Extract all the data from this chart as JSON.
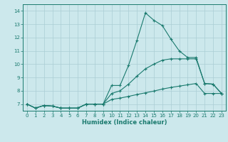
{
  "xlabel": "Humidex (Indice chaleur)",
  "background_color": "#cce8ec",
  "grid_color": "#aacdd4",
  "line_color": "#1a7a6e",
  "x_values": [
    0,
    1,
    2,
    3,
    4,
    5,
    6,
    7,
    8,
    9,
    10,
    11,
    12,
    13,
    14,
    15,
    16,
    17,
    18,
    19,
    20,
    21,
    22,
    23
  ],
  "line_main_y": [
    7.0,
    6.7,
    6.9,
    6.85,
    6.7,
    6.7,
    6.7,
    7.0,
    7.0,
    7.0,
    8.4,
    8.4,
    9.9,
    11.8,
    13.85,
    13.3,
    12.9,
    11.9,
    11.0,
    10.5,
    10.5,
    8.55,
    8.5,
    7.8
  ],
  "line_mid_y": [
    7.0,
    6.7,
    6.9,
    6.85,
    6.7,
    6.7,
    6.7,
    7.0,
    7.0,
    7.0,
    7.8,
    8.0,
    8.5,
    9.1,
    9.65,
    10.0,
    10.3,
    10.4,
    10.4,
    10.4,
    10.4,
    8.55,
    8.5,
    7.8
  ],
  "line_low_y": [
    7.0,
    6.7,
    6.9,
    6.85,
    6.7,
    6.7,
    6.7,
    7.0,
    7.0,
    7.0,
    7.35,
    7.45,
    7.58,
    7.72,
    7.85,
    7.98,
    8.13,
    8.25,
    8.35,
    8.45,
    8.55,
    7.8,
    7.8,
    7.8
  ],
  "ylim": [
    6.5,
    14.5
  ],
  "xlim": [
    -0.5,
    23.5
  ],
  "yticks": [
    7,
    8,
    9,
    10,
    11,
    12,
    13,
    14
  ],
  "xticks": [
    0,
    1,
    2,
    3,
    4,
    5,
    6,
    7,
    8,
    9,
    10,
    11,
    12,
    13,
    14,
    15,
    16,
    17,
    18,
    19,
    20,
    21,
    22,
    23
  ]
}
